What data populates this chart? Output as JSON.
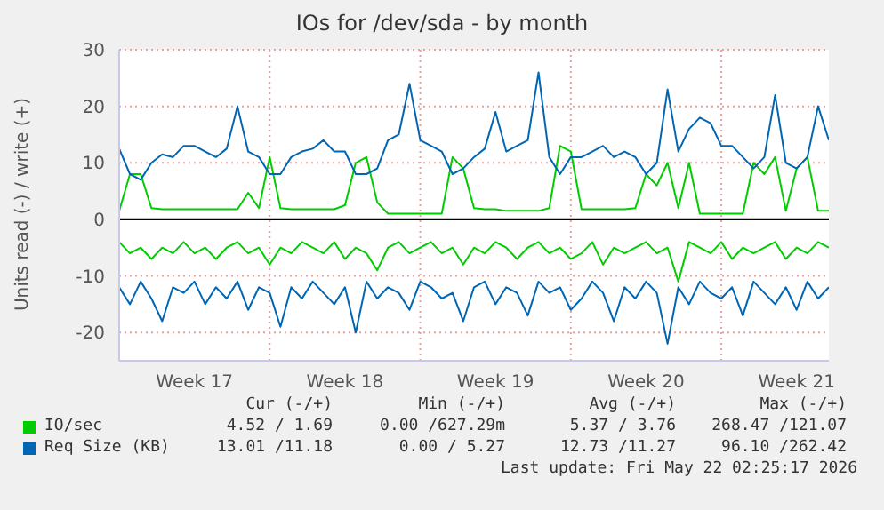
{
  "chart_data": {
    "type": "line",
    "title": "IOs for /dev/sda - by month",
    "ylabel": "Units read (-) / write (+)",
    "categories": [
      null,
      null,
      null,
      null,
      null,
      null,
      null,
      "Week 17",
      null,
      null,
      null,
      null,
      null,
      null,
      null,
      null,
      null,
      null,
      null,
      null,
      null,
      "Week 18",
      null,
      null,
      null,
      null,
      null,
      null,
      null,
      null,
      null,
      null,
      null,
      null,
      null,
      "Week 19",
      null,
      null,
      null,
      null,
      null,
      null,
      null,
      null,
      null,
      null,
      null,
      null,
      null,
      "Week 20",
      null,
      null,
      null,
      null,
      null,
      null,
      null,
      null,
      null,
      null,
      null,
      null,
      null,
      "Week 21",
      null,
      null,
      null
    ],
    "ylim": [
      -25,
      30
    ],
    "yticks": [
      -20,
      -10,
      0,
      10,
      20,
      30
    ],
    "grid": true,
    "legend": "bottom left",
    "marker": "none",
    "line_style": "solid",
    "ref_lines": [
      {
        "axis": "y",
        "value": 0,
        "color": "#000000"
      }
    ],
    "series": [
      {
        "name": "IO/sec",
        "color": "#00cc00",
        "values": [
          1.5,
          8,
          8,
          2,
          1.8,
          1.8,
          1.8,
          1.8,
          1.8,
          1.8,
          1.8,
          1.8,
          4.7,
          2,
          11,
          2,
          1.8,
          1.8,
          1.8,
          1.8,
          1.8,
          2.5,
          10,
          11,
          3,
          1,
          1,
          1,
          1,
          1,
          1,
          11,
          9,
          2,
          1.8,
          1.8,
          1.5,
          1.5,
          1.5,
          1.5,
          2,
          13,
          12,
          1.8,
          1.8,
          1.8,
          1.8,
          1.8,
          2,
          8,
          6,
          10,
          2,
          10,
          1,
          1,
          1,
          1,
          1,
          10,
          8,
          11,
          1.5,
          9,
          11,
          1.5,
          1.5
        ]
      },
      {
        "color": "#00cc00",
        "values": [
          -4,
          -6,
          -5,
          -7,
          -5,
          -6,
          -4,
          -6,
          -5,
          -7,
          -5,
          -4,
          -6,
          -5,
          -8,
          -5,
          -6,
          -4,
          -5,
          -6,
          -4,
          -7,
          -5,
          -6,
          -9,
          -5,
          -4,
          -6,
          -5,
          -4,
          -6,
          -5,
          -8,
          -5,
          -6,
          -4,
          -5,
          -7,
          -5,
          -4,
          -6,
          -5,
          -7,
          -6,
          -4,
          -8,
          -5,
          -6,
          -5,
          -4,
          -6,
          -5,
          -11,
          -4,
          -5,
          -6,
          -4,
          -7,
          -5,
          -6,
          -5,
          -4,
          -7,
          -5,
          -6,
          -4,
          -5
        ]
      },
      {
        "name": "Req Size (KB)",
        "color": "#0066b3",
        "values": [
          12.5,
          8,
          7,
          10,
          11.5,
          11,
          13,
          13,
          12,
          11,
          12.5,
          20,
          12,
          11,
          8,
          8,
          11,
          12,
          12.5,
          14,
          12,
          12,
          8,
          8,
          9,
          14,
          15,
          24,
          14,
          13,
          12,
          8,
          9,
          11,
          12.5,
          19,
          12,
          13,
          14,
          26,
          11,
          8,
          11,
          11,
          12,
          13,
          11,
          12,
          11,
          8,
          10,
          23,
          12,
          16,
          18,
          17,
          13,
          13,
          11,
          9,
          11,
          22,
          10,
          9,
          11,
          20,
          14
        ]
      },
      {
        "color": "#0066b3",
        "values": [
          -12,
          -15,
          -11,
          -14,
          -18,
          -12,
          -13,
          -11,
          -15,
          -12,
          -14,
          -11,
          -16,
          -12,
          -13,
          -19,
          -12,
          -14,
          -11,
          -13,
          -15,
          -12,
          -20,
          -11,
          -14,
          -12,
          -13,
          -16,
          -11,
          -12,
          -14,
          -13,
          -18,
          -12,
          -11,
          -15,
          -12,
          -13,
          -17,
          -11,
          -13,
          -12,
          -16,
          -14,
          -11,
          -13,
          -18,
          -12,
          -14,
          -11,
          -13,
          -22,
          -12,
          -15,
          -11,
          -13,
          -14,
          -12,
          -17,
          -11,
          -13,
          -15,
          -12,
          -16,
          -11,
          -14,
          -12
        ]
      }
    ],
    "annotations": [
      "Cur (-/+)",
      "Min (-/+)",
      "Avg (-/+)",
      "Max (-/+)",
      "4.52 / 1.69",
      "0.00 /627.29m",
      "5.37 / 3.76",
      "268.47 /121.07",
      "13.01 /11.18",
      "0.00 / 5.27",
      "12.73 /11.27",
      "96.10 /262.42",
      "Last update: Fri May 22 02:25:17 2026"
    ]
  }
}
